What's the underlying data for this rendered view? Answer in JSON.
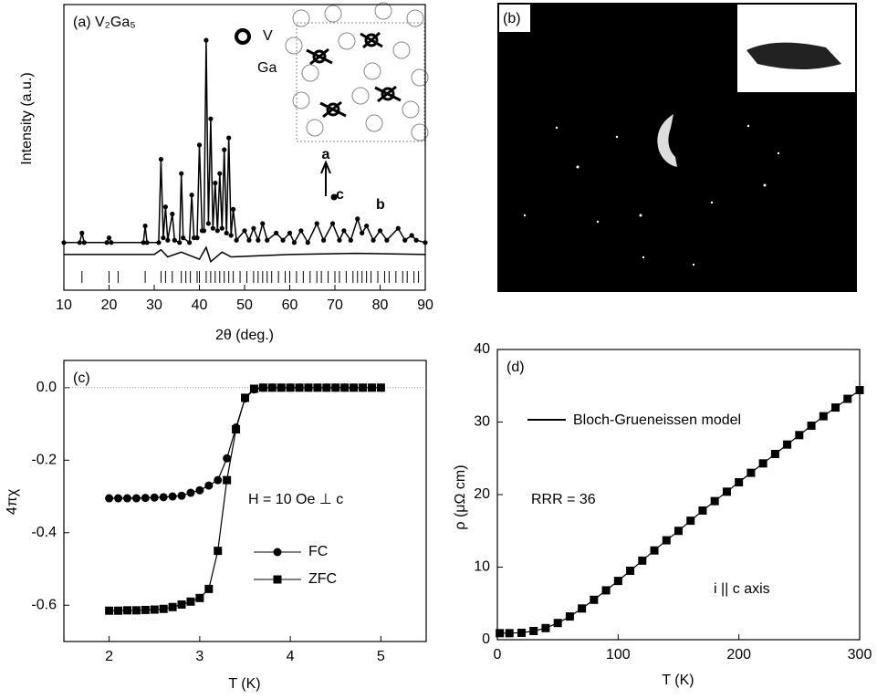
{
  "chart_data": [
    {
      "type": "line",
      "title": "(a) V₂Ga₅",
      "xlabel": "2θ (deg.)",
      "ylabel": "Intensity (a.u.)",
      "xlim": [
        10,
        90
      ],
      "ylim": [
        -20,
        100
      ],
      "xticks": [
        10,
        20,
        30,
        40,
        50,
        60,
        70,
        80,
        90
      ],
      "inset_labels": [
        "V",
        "Ga",
        "a",
        "c",
        "b"
      ],
      "series": [
        {
          "color": "#000000",
          "marker": "circle",
          "line": true,
          "x": [
            10,
            13.5,
            14,
            14.5,
            19.5,
            20,
            20.5,
            27.6,
            28,
            28.4,
            31,
            31.5,
            32,
            32.5,
            33,
            34,
            34.5,
            35.6,
            36,
            36.4,
            37.8,
            38.3,
            38.8,
            39.5,
            40,
            40.6,
            41,
            41.5,
            42,
            42.5,
            43,
            43.5,
            44,
            44.5,
            45,
            45.5,
            46,
            46.5,
            47,
            47.5,
            48.2,
            50,
            51,
            52,
            53,
            54,
            55,
            57,
            58.5,
            60,
            61,
            62.5,
            64,
            66,
            67.5,
            69.5,
            71,
            72,
            73.5,
            75,
            76,
            77,
            78.5,
            80,
            81.5,
            84,
            85.5,
            87,
            88,
            90
          ],
          "values": [
            0,
            0,
            4,
            0,
            0,
            2,
            0,
            0,
            7,
            0,
            0,
            35,
            2,
            15,
            1,
            12,
            1,
            0,
            29,
            2,
            0,
            20,
            2,
            2,
            41,
            5,
            5,
            85,
            8,
            52,
            6,
            25,
            5,
            29,
            6,
            39,
            4,
            44,
            3,
            14,
            1,
            5,
            1,
            6,
            1,
            8,
            1,
            4,
            1,
            4,
            0,
            5,
            0,
            8,
            1,
            8,
            1,
            5,
            1,
            10,
            4,
            7,
            1,
            5,
            1,
            6,
            1,
            3,
            1,
            0
          ]
        },
        {
          "color": "#000000",
          "line": true,
          "x": [
            10,
            30,
            31.5,
            33,
            36,
            40,
            41.5,
            42.5,
            45,
            47,
            60,
            75,
            90
          ],
          "values": [
            -5,
            -5,
            -3,
            -6,
            -4,
            -7,
            -2,
            -8,
            -4,
            -6,
            -5,
            -4.5,
            -5
          ]
        }
      ],
      "reflections": [
        14,
        20,
        22,
        28,
        31.5,
        32.5,
        34,
        36,
        37,
        38,
        39.5,
        40,
        41.5,
        42.5,
        43.5,
        44.5,
        45.5,
        46.5,
        47.5,
        49,
        50.5,
        52,
        53,
        54,
        55,
        56,
        57.5,
        59,
        60,
        61.5,
        63,
        64.5,
        66,
        67,
        68.5,
        70,
        71,
        72.5,
        74,
        75,
        76,
        77,
        78,
        79.5,
        81,
        82,
        83.5,
        85,
        86,
        87.5,
        88.5
      ]
    },
    {
      "type": "image",
      "title": "(b)"
    },
    {
      "type": "line",
      "title": "(c)",
      "xlabel": "T (K)",
      "ylabel": "4πχ",
      "annotation": "H = 10 Oe ⊥ c",
      "xlim": [
        1.5,
        5.5
      ],
      "ylim": [
        -0.7,
        0.075
      ],
      "xticks": [
        2,
        3,
        4,
        5
      ],
      "yticks": [
        {
          "value": 0,
          "label": "0.0"
        },
        -0.2,
        -0.4,
        -0.6
      ],
      "hline": 0,
      "x": [
        2.0,
        2.1,
        2.2,
        2.3,
        2.4,
        2.5,
        2.6,
        2.7,
        2.8,
        2.9,
        3.0,
        3.1,
        3.2,
        3.3,
        3.4,
        3.5,
        3.6,
        3.7,
        3.8,
        3.9,
        4.0,
        4.1,
        4.2,
        4.3,
        4.4,
        4.5,
        4.6,
        4.7,
        4.8,
        4.9,
        5.0
      ],
      "series": [
        {
          "name": "FC",
          "color": "#000000",
          "marker": "circle",
          "line": true,
          "values": [
            -0.305,
            -0.305,
            -0.305,
            -0.305,
            -0.304,
            -0.303,
            -0.302,
            -0.3,
            -0.298,
            -0.29,
            -0.283,
            -0.27,
            -0.255,
            -0.195,
            -0.11,
            -0.03,
            -0.005,
            0,
            0,
            0,
            0,
            0,
            0,
            0,
            0,
            0,
            0,
            0,
            0,
            0,
            0
          ]
        },
        {
          "name": "ZFC",
          "color": "#000000",
          "marker": "square",
          "line": true,
          "values": [
            -0.615,
            -0.615,
            -0.614,
            -0.614,
            -0.613,
            -0.612,
            -0.61,
            -0.605,
            -0.598,
            -0.59,
            -0.58,
            -0.555,
            -0.45,
            -0.255,
            -0.115,
            -0.028,
            -0.003,
            0,
            0,
            0,
            0,
            0,
            0,
            0,
            0,
            0,
            0,
            0,
            0,
            0,
            0
          ]
        }
      ]
    },
    {
      "type": "line",
      "title": "(d)",
      "xlabel": "T (K)",
      "ylabel": "ρ (μΩ cm)",
      "annotations": [
        "RRR = 36",
        "i || c axis"
      ],
      "xlim": [
        0,
        300
      ],
      "ylim": [
        0,
        40
      ],
      "xticks": [
        0,
        100,
        200,
        300
      ],
      "yticks": [
        0,
        10,
        20,
        30,
        40
      ],
      "x": [
        2,
        10,
        20,
        30,
        40,
        50,
        60,
        70,
        80,
        90,
        100,
        110,
        120,
        130,
        140,
        150,
        160,
        170,
        180,
        190,
        200,
        210,
        220,
        230,
        240,
        250,
        260,
        270,
        280,
        290,
        300
      ],
      "series": [
        {
          "name": "Bloch-Grueneissen model",
          "color": "#000000",
          "line": true,
          "values": [
            0.9,
            0.9,
            0.95,
            1.2,
            1.6,
            2.3,
            3.2,
            4.3,
            5.5,
            6.8,
            8.1,
            9.5,
            10.9,
            12.3,
            13.7,
            15.0,
            16.4,
            17.8,
            19.1,
            20.4,
            21.7,
            23.0,
            24.3,
            25.6,
            26.9,
            28.2,
            29.5,
            30.8,
            32.0,
            33.2,
            34.4
          ]
        },
        {
          "color": "#000000",
          "marker": "square",
          "line": false,
          "values": [
            0.9,
            0.9,
            0.95,
            1.2,
            1.6,
            2.3,
            3.2,
            4.3,
            5.5,
            6.8,
            8.1,
            9.5,
            10.9,
            12.3,
            13.7,
            15.0,
            16.4,
            17.8,
            19.1,
            20.4,
            21.7,
            23.0,
            24.3,
            25.6,
            26.9,
            28.2,
            29.5,
            30.8,
            32.0,
            33.2,
            34.4
          ]
        }
      ]
    }
  ]
}
